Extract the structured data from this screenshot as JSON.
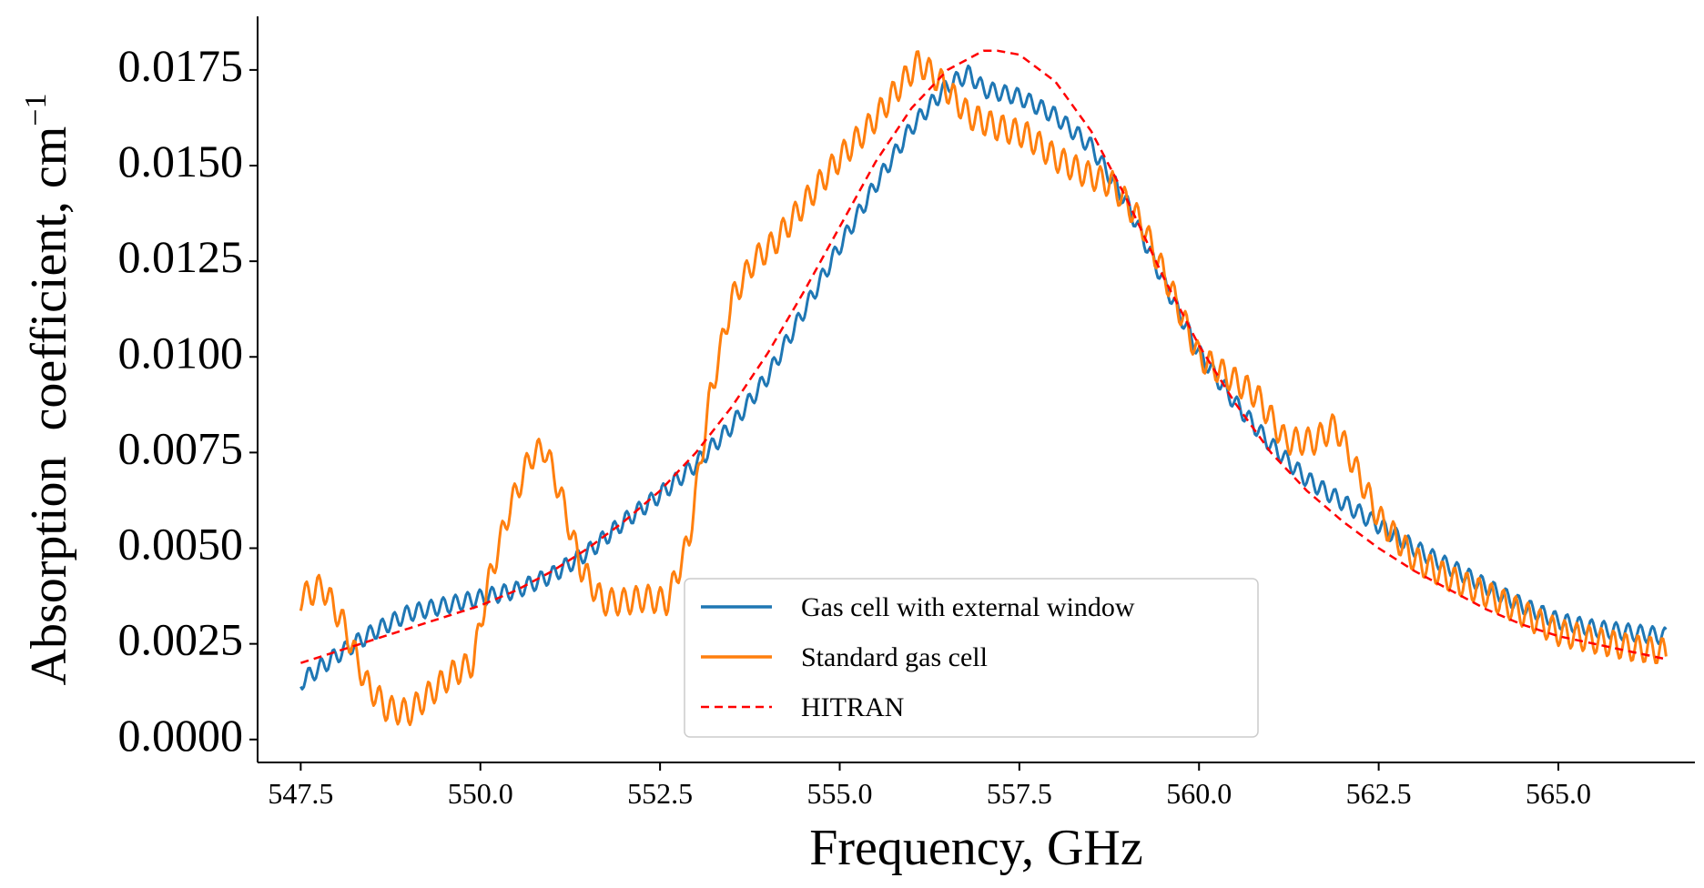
{
  "chart_data": {
    "type": "line",
    "title": "",
    "xlabel": "Frequency, GHz",
    "ylabel": "Absorption  coefficient, cm",
    "ylabel_superscript": "−1",
    "xlim": [
      546.9,
      566.9
    ],
    "ylim": [
      -0.0006,
      0.0189
    ],
    "xticks": [
      547.5,
      550.0,
      552.5,
      555.0,
      557.5,
      560.0,
      562.5,
      565.0
    ],
    "xtick_labels": [
      "547.5",
      "550.0",
      "552.5",
      "555.0",
      "557.5",
      "560.0",
      "562.5",
      "565.0"
    ],
    "yticks": [
      0.0,
      0.0025,
      0.005,
      0.0075,
      0.01,
      0.0125,
      0.015,
      0.0175
    ],
    "ytick_labels": [
      "0.0000",
      "0.0025",
      "0.0050",
      "0.0075",
      "0.0100",
      "0.0125",
      "0.0150",
      "0.0175"
    ],
    "grid": false,
    "legend_position": "lower-center",
    "series": [
      {
        "name": "Gas cell with external window",
        "color": "#1f77b4",
        "style": "solid",
        "x": [
          547.5,
          548.0,
          548.5,
          549.0,
          549.5,
          550.0,
          550.5,
          551.0,
          551.5,
          552.0,
          552.5,
          553.0,
          553.5,
          554.0,
          554.5,
          555.0,
          555.5,
          556.0,
          556.5,
          556.8,
          557.0,
          557.5,
          558.0,
          558.5,
          559.0,
          559.5,
          560.0,
          560.5,
          561.0,
          561.5,
          562.0,
          562.5,
          563.0,
          563.5,
          564.0,
          564.5,
          565.0,
          565.5,
          566.0,
          566.5
        ],
        "y": [
          0.0015,
          0.0022,
          0.0028,
          0.0033,
          0.0035,
          0.0037,
          0.0039,
          0.0043,
          0.0049,
          0.0057,
          0.0064,
          0.0072,
          0.0082,
          0.0095,
          0.0112,
          0.0129,
          0.0145,
          0.016,
          0.0171,
          0.0174,
          0.017,
          0.0168,
          0.0163,
          0.0155,
          0.014,
          0.012,
          0.0101,
          0.0088,
          0.0077,
          0.0068,
          0.0062,
          0.0056,
          0.005,
          0.0045,
          0.004,
          0.0035,
          0.0031,
          0.0029,
          0.0028,
          0.0027
        ]
      },
      {
        "name": "Standard gas cell",
        "color": "#ff7f0e",
        "style": "solid",
        "x": [
          547.5,
          547.8,
          548.1,
          548.4,
          548.7,
          549.0,
          549.3,
          549.6,
          549.9,
          550.1,
          550.4,
          550.7,
          550.9,
          551.1,
          551.4,
          551.7,
          552.0,
          552.3,
          552.6,
          552.9,
          553.2,
          553.5,
          553.8,
          554.1,
          554.5,
          555.0,
          555.4,
          555.8,
          556.1,
          556.4,
          556.8,
          557.2,
          557.6,
          558.0,
          558.4,
          558.8,
          559.2,
          559.6,
          560.0,
          560.4,
          560.8,
          561.2,
          561.6,
          561.9,
          562.2,
          562.5,
          563.0,
          563.5,
          564.0,
          564.5,
          565.0,
          565.5,
          566.0,
          566.5
        ],
        "y": [
          0.0037,
          0.004,
          0.003,
          0.0015,
          0.0008,
          0.0007,
          0.0012,
          0.0017,
          0.002,
          0.004,
          0.006,
          0.0074,
          0.0076,
          0.0065,
          0.0045,
          0.0036,
          0.0036,
          0.0037,
          0.0036,
          0.0052,
          0.009,
          0.0115,
          0.0125,
          0.013,
          0.014,
          0.0152,
          0.016,
          0.017,
          0.0177,
          0.0172,
          0.0163,
          0.016,
          0.0158,
          0.0152,
          0.0148,
          0.0145,
          0.0135,
          0.0118,
          0.01,
          0.0095,
          0.009,
          0.0078,
          0.0078,
          0.0082,
          0.007,
          0.0058,
          0.0047,
          0.0042,
          0.0038,
          0.0033,
          0.0028,
          0.0026,
          0.0024,
          0.0023
        ]
      },
      {
        "name": "HITRAN",
        "color": "#ff0000",
        "style": "dashed",
        "x": [
          547.5,
          548.0,
          548.5,
          549.0,
          549.5,
          550.0,
          550.5,
          551.0,
          551.5,
          552.0,
          552.5,
          553.0,
          553.5,
          554.0,
          554.5,
          555.0,
          555.5,
          556.0,
          556.5,
          557.0,
          557.2,
          557.5,
          558.0,
          558.5,
          559.0,
          559.5,
          560.0,
          560.5,
          561.0,
          561.5,
          562.0,
          562.5,
          563.0,
          563.5,
          564.0,
          564.5,
          565.0,
          565.5,
          566.0,
          566.5
        ],
        "y": [
          0.002,
          0.0023,
          0.0026,
          0.0029,
          0.0032,
          0.0035,
          0.0039,
          0.0044,
          0.005,
          0.0057,
          0.0065,
          0.0075,
          0.0087,
          0.0101,
          0.0117,
          0.0134,
          0.0151,
          0.0165,
          0.0175,
          0.018,
          0.018,
          0.0179,
          0.0172,
          0.0159,
          0.0141,
          0.0121,
          0.0103,
          0.0088,
          0.0075,
          0.0065,
          0.0057,
          0.005,
          0.0044,
          0.0039,
          0.0034,
          0.003,
          0.0027,
          0.0025,
          0.0023,
          0.0021
        ]
      }
    ]
  }
}
